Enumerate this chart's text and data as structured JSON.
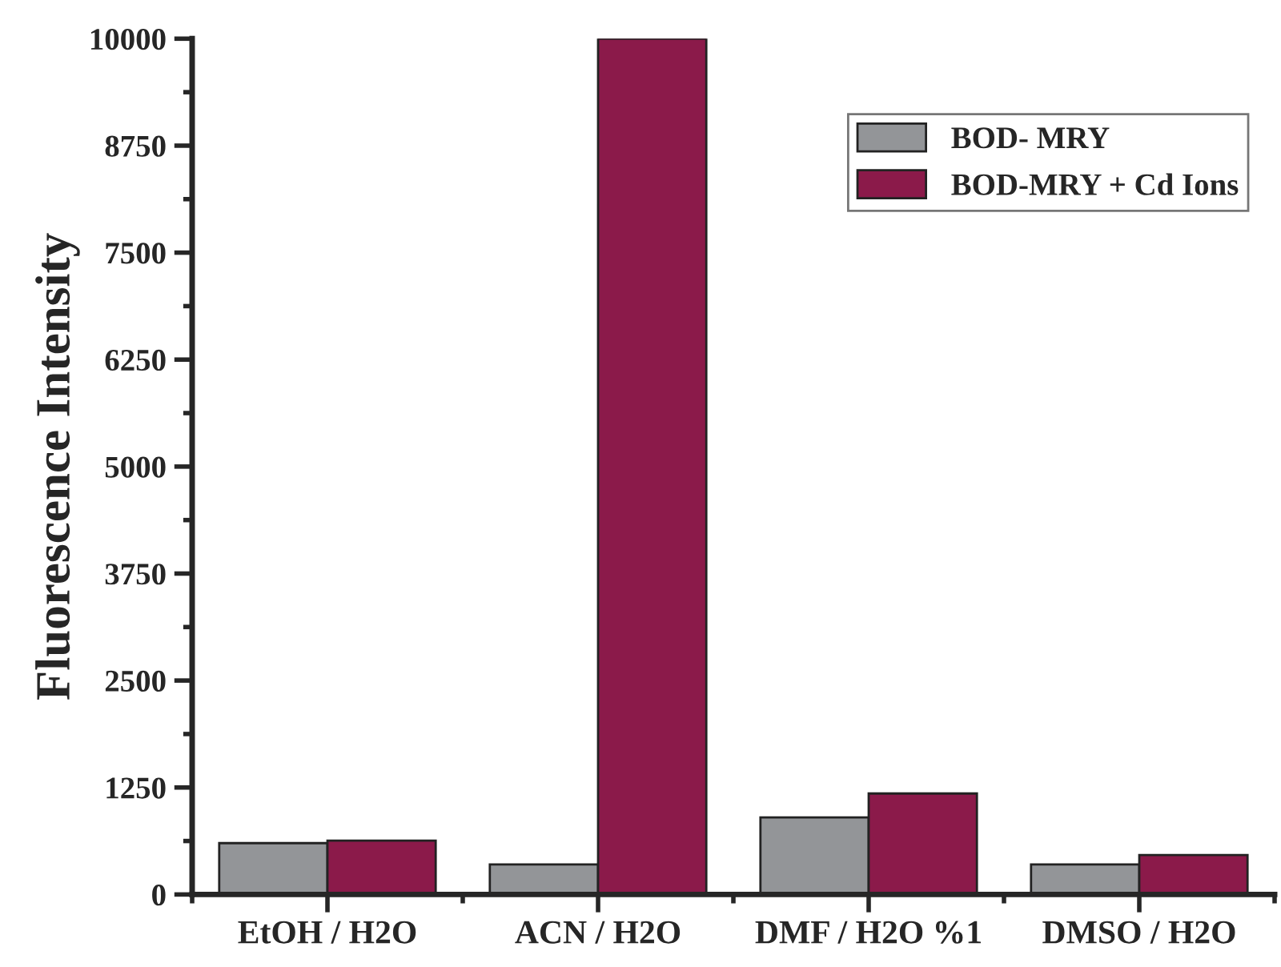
{
  "chart_data": {
    "type": "bar",
    "ylabel": "Fluorescence Intensity",
    "categories": [
      "EtOH / H2O",
      "ACN / H2O",
      "DMF / H2O %1",
      "DMSO / H2O"
    ],
    "series": [
      {
        "name": "BOD- MRY",
        "color": "#939598",
        "values": [
          600,
          350,
          900,
          350
        ]
      },
      {
        "name": "BOD-MRY + Cd Ions",
        "color": "#8b1a4a",
        "values": [
          630,
          10000,
          1180,
          460
        ]
      }
    ],
    "ylim": [
      0,
      10000
    ],
    "yticks": [
      0,
      1250,
      2500,
      3750,
      5000,
      6250,
      7500,
      8750,
      10000
    ],
    "grid": false,
    "legend": "top right"
  }
}
